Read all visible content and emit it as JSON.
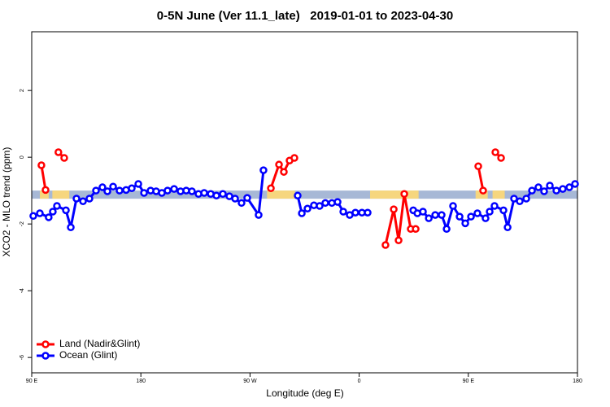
{
  "chart_data": {
    "type": "line",
    "title": "0-5N June (Ver 11.1_late)   2019-01-01 to 2023-04-30",
    "x_label": "Longitude (deg E)",
    "y_label": "XCO2 - MLO trend (ppm)",
    "xlim": [
      90,
      540
    ],
    "xticks": [
      {
        "value": 90,
        "label": "90 E"
      },
      180,
      {
        "value": 270,
        "label": "90 W"
      },
      {
        "value": 360,
        "label": "0"
      },
      {
        "value": 450,
        "label": "90 E"
      },
      {
        "value": 540,
        "label": "180"
      }
    ],
    "ylim": [
      -6.46,
      3.76
    ],
    "yticks": [
      2,
      0,
      -2,
      -4,
      -6
    ],
    "legend": "bottom-left",
    "band": {
      "value": -1.12,
      "color": "#a7b8d6",
      "land_color": "#f6d67e",
      "land": [
        [
          96.7,
          104
        ],
        [
          107,
          121
        ],
        [
          284,
          307
        ],
        [
          369,
          409
        ],
        [
          456,
          466
        ],
        [
          470,
          480
        ]
      ]
    },
    "series": [
      {
        "name": "Land (Nadir&Glint)",
        "color": "#ff0000",
        "x": [
          98,
          101.4,
          null,
          112,
          116.8,
          null,
          287.2,
          293.9,
          297.9,
          302.6,
          306.6,
          null,
          381.7,
          388.5,
          392.5,
          397.2,
          402.5,
          406.6,
          null,
          458.2,
          462.2,
          null,
          472.3,
          477.0
        ],
        "values": [
          -0.24,
          -0.98,
          null,
          0.15,
          -0.02,
          null,
          -0.93,
          -0.22,
          -0.44,
          -0.1,
          -0.02,
          null,
          -2.63,
          -1.56,
          -2.49,
          -1.1,
          -2.15,
          -2.15,
          null,
          -0.27,
          -1.0,
          null,
          0.15,
          -0.02
        ]
      },
      {
        "name": "Ocean (Glint)",
        "color": "#0000ff",
        "x": [
          91.3,
          96.7,
          104,
          107.4,
          110.8,
          118.2,
          122.2,
          126.9,
          132.3,
          137.6,
          143,
          148.3,
          152.4,
          157.1,
          162.4,
          167.8,
          172.5,
          177.9,
          182.6,
          188,
          192.6,
          197.3,
          202,
          207.4,
          212.7,
          217.4,
          222.1,
          227.5,
          232.2,
          237.6,
          242.3,
          247.6,
          253,
          257.7,
          263,
          267.7,
          277.1,
          281.1,
          null,
          309.3,
          312.7,
          317.4,
          322.7,
          327.4,
          332.1,
          337.5,
          342.2,
          346.9,
          352.2,
          356.9,
          362.3,
          367,
          null,
          404.6,
          408,
          412.6,
          417.4,
          422.7,
          428,
          432.1,
          437.4,
          442.8,
          447.5,
          452.2,
          457.5,
          464.2,
          467.6,
          471.6,
          479,
          482.4,
          487.7,
          492.4,
          497.8,
          502.5,
          507.8,
          512.5,
          517.2,
          522.6,
          527.9,
          533.3,
          538
        ],
        "values": [
          -1.76,
          -1.68,
          -1.8,
          -1.63,
          -1.46,
          -1.59,
          -2.1,
          -1.24,
          -1.32,
          -1.24,
          -1.0,
          -0.9,
          -1.02,
          -0.88,
          -1.0,
          -0.98,
          -0.93,
          -0.8,
          -1.07,
          -1.0,
          -1.02,
          -1.07,
          -1.0,
          -0.95,
          -1.02,
          -1.0,
          -1.02,
          -1.1,
          -1.07,
          -1.1,
          -1.15,
          -1.1,
          -1.17,
          -1.24,
          -1.37,
          -1.22,
          -1.73,
          -0.39,
          null,
          -1.15,
          -1.68,
          -1.54,
          -1.44,
          -1.46,
          -1.37,
          -1.37,
          -1.34,
          -1.63,
          -1.73,
          -1.66,
          -1.66,
          -1.66,
          null,
          -1.59,
          -1.68,
          -1.63,
          -1.83,
          -1.73,
          -1.73,
          -2.15,
          -1.46,
          -1.78,
          -1.98,
          -1.78,
          -1.68,
          -1.83,
          -1.63,
          -1.46,
          -1.59,
          -2.1,
          -1.24,
          -1.32,
          -1.24,
          -1.0,
          -0.9,
          -1.02,
          -0.85,
          -1.0,
          -0.95,
          -0.9,
          -0.8
        ]
      }
    ]
  }
}
